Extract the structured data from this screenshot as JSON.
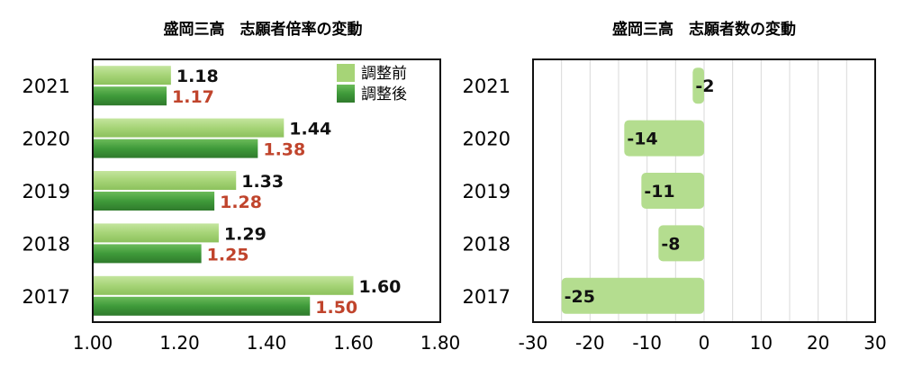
{
  "chart_data": [
    {
      "type": "bar",
      "orientation": "horizontal",
      "title": "盛岡三高　志願者倍率の変動",
      "categories": [
        "2021",
        "2020",
        "2019",
        "2018",
        "2017"
      ],
      "series": [
        {
          "name": "調整前",
          "values": [
            1.18,
            1.44,
            1.33,
            1.29,
            1.6
          ],
          "labels": [
            "1.18",
            "1.44",
            "1.33",
            "1.29",
            "1.60"
          ],
          "color": "#a6d477"
        },
        {
          "name": "調整後",
          "values": [
            1.17,
            1.38,
            1.28,
            1.25,
            1.5
          ],
          "labels": [
            "1.17",
            "1.38",
            "1.28",
            "1.25",
            "1.50"
          ],
          "color": "#3f9a3a"
        }
      ],
      "xlim": [
        1.0,
        1.8
      ],
      "xticks": [
        "1.00",
        "1.20",
        "1.40",
        "1.60",
        "1.80"
      ],
      "xtick_values": [
        1.0,
        1.2,
        1.4,
        1.6,
        1.8
      ],
      "grid": false,
      "legend": "top-right",
      "label_color_after": "#c0442c"
    },
    {
      "type": "bar",
      "orientation": "horizontal",
      "title": "盛岡三高　志願者数の変動",
      "categories": [
        "2021",
        "2020",
        "2019",
        "2018",
        "2017"
      ],
      "values": [
        -2,
        -14,
        -11,
        -8,
        -25
      ],
      "labels": [
        "-2",
        "-14",
        "-11",
        "-8",
        "-25"
      ],
      "xlim": [
        -30,
        30
      ],
      "xticks": [
        "-30",
        "-20",
        "-10",
        "0",
        "10",
        "20",
        "30"
      ],
      "xtick_values": [
        -30,
        -20,
        -10,
        0,
        10,
        20,
        30
      ],
      "grid_step": 5,
      "grid": true,
      "color": "#b4dd8f"
    }
  ]
}
